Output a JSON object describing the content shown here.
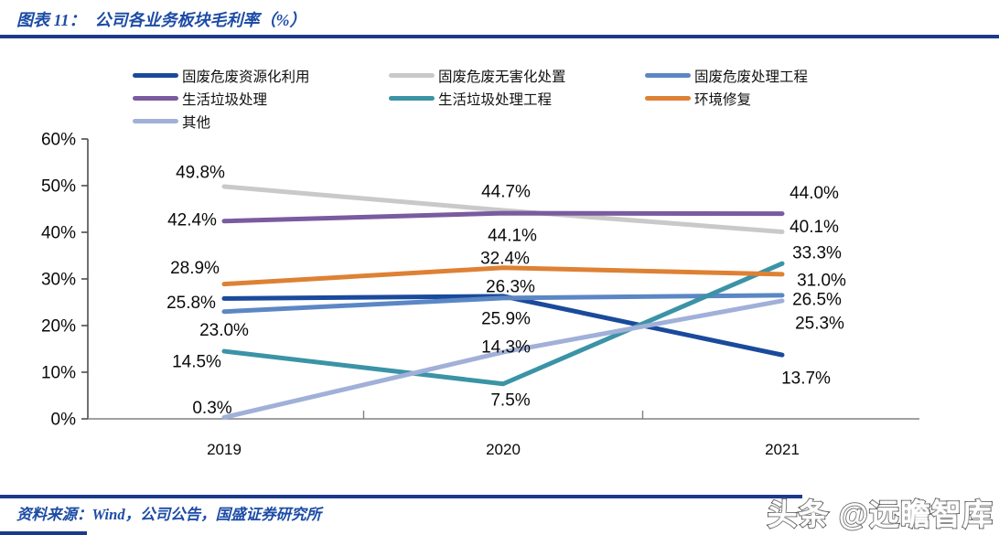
{
  "header": {
    "figure_label": "图表 11：",
    "title": "公司各业务板块毛利率（%）"
  },
  "footer": {
    "source": "资料来源：Wind，公司公告，国盛证券研究所",
    "watermark": "头条 @远瞻智库"
  },
  "chart_data": {
    "type": "line",
    "title": "公司各业务板块毛利率（%）",
    "x": [
      "2019",
      "2020",
      "2021"
    ],
    "yticks": [
      "60%",
      "50%",
      "40%",
      "30%",
      "20%",
      "10%",
      "0%"
    ],
    "ylim": [
      0,
      60
    ],
    "grid": false,
    "legend_position": "top",
    "series": [
      {
        "name": "固废危废资源化利用",
        "color": "#1a4a9c",
        "values": [
          25.8,
          26.3,
          13.7
        ]
      },
      {
        "name": "固废危废无害化处置",
        "color": "#c9c9c9",
        "values": [
          49.8,
          44.7,
          40.1
        ]
      },
      {
        "name": "固废危废处理工程",
        "color": "#5b87c4",
        "values": [
          23.0,
          25.9,
          26.5
        ]
      },
      {
        "name": "生活垃圾处理",
        "color": "#7a5ba0",
        "values": [
          42.4,
          44.1,
          44.0
        ]
      },
      {
        "name": "生活垃圾处理工程",
        "color": "#3b93a6",
        "values": [
          14.5,
          7.5,
          33.3
        ]
      },
      {
        "name": "环境修复",
        "color": "#de8134",
        "values": [
          28.9,
          32.4,
          31.0
        ]
      },
      {
        "name": "其他",
        "color": "#a0b0d8",
        "values": [
          0.3,
          14.3,
          25.3
        ]
      }
    ]
  }
}
